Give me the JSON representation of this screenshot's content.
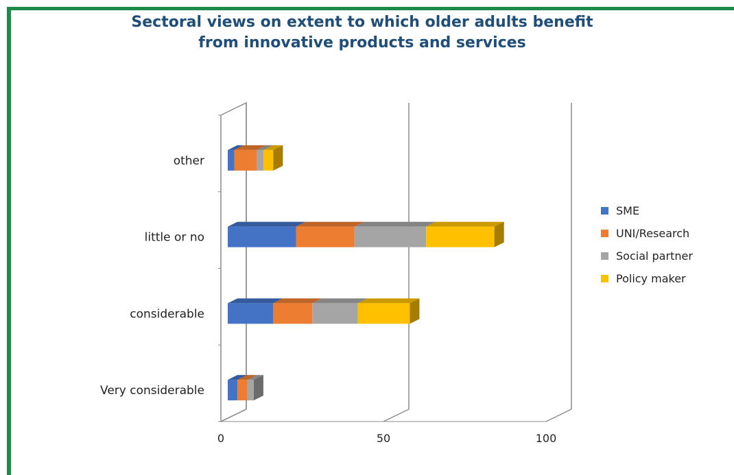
{
  "chart_data": {
    "type": "bar",
    "orientation": "horizontal",
    "stacked": true,
    "three_d": true,
    "title_lines": [
      "Sectoral views on extent to which older adults benefit",
      "from innovative products and services"
    ],
    "categories": [
      "Very considerable",
      "considerable",
      "little or no",
      "other"
    ],
    "series": [
      {
        "name": "SME",
        "values": [
          3,
          14,
          21,
          2
        ],
        "color": "#4472c4"
      },
      {
        "name": "UNI/Research",
        "values": [
          3,
          12,
          18,
          7
        ],
        "color": "#ed7d31"
      },
      {
        "name": "Social partner",
        "values": [
          2,
          14,
          22,
          2
        ],
        "color": "#a5a5a5"
      },
      {
        "name": "Policy maker",
        "values": [
          0,
          16,
          21,
          3
        ],
        "color": "#ffc000"
      }
    ],
    "x_ticks": [
      0,
      50,
      100
    ],
    "xlim": [
      0,
      100
    ],
    "grid": true,
    "legend_position": "right",
    "frame_color": "#1e8a4a"
  }
}
